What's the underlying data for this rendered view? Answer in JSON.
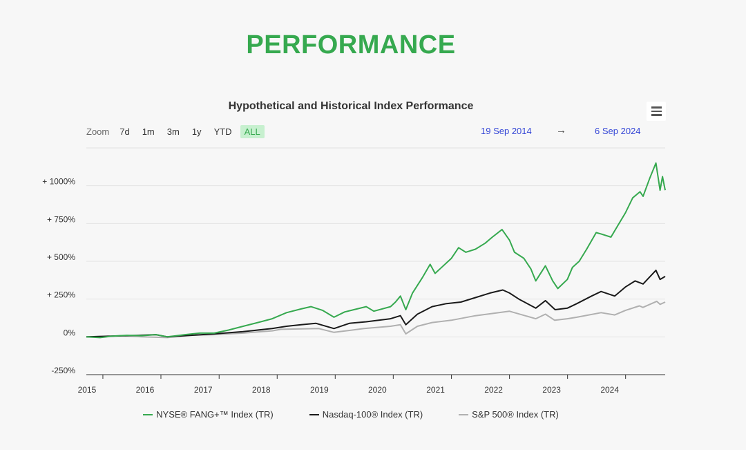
{
  "page": {
    "title": "PERFORMANCE"
  },
  "toolbar": {
    "zoom_label": "Zoom",
    "zoom_buttons": [
      "7d",
      "1m",
      "3m",
      "1y",
      "YTD",
      "ALL"
    ],
    "active_zoom": "ALL",
    "date_from": "19 Sep 2014",
    "arrow": "→",
    "date_to": "6 Sep 2024",
    "menu_icon": "hamburger-menu-icon"
  },
  "chart_data": {
    "type": "line",
    "title": "Hypothetical and Historical Index Performance",
    "xlabel": "",
    "ylabel": "",
    "x_ticks": [
      "2015",
      "2016",
      "2017",
      "2018",
      "2019",
      "2020",
      "2021",
      "2022",
      "2023",
      "2024"
    ],
    "y_ticks": [
      "-250%",
      "0%",
      "+ 250%",
      "+ 500%",
      "+ 750%",
      "+ 1000%"
    ],
    "ylim": [
      -250,
      1250
    ],
    "xlim": [
      "2014-09-19",
      "2024-09-06"
    ],
    "grid": "horizontal",
    "legend_position": "bottom",
    "series": [
      {
        "name": "NYSE® FANG+™ Index (TR)",
        "color": "#36a94f",
        "points": [
          [
            "2014-09-19",
            0
          ],
          [
            "2014-12-15",
            -5
          ],
          [
            "2015-03-01",
            5
          ],
          [
            "2015-06-01",
            10
          ],
          [
            "2015-09-01",
            8
          ],
          [
            "2015-12-01",
            15
          ],
          [
            "2016-02-10",
            0
          ],
          [
            "2016-06-01",
            15
          ],
          [
            "2016-09-01",
            25
          ],
          [
            "2016-12-01",
            25
          ],
          [
            "2017-03-01",
            45
          ],
          [
            "2017-06-01",
            70
          ],
          [
            "2017-09-01",
            95
          ],
          [
            "2017-12-01",
            120
          ],
          [
            "2018-03-01",
            160
          ],
          [
            "2018-06-01",
            185
          ],
          [
            "2018-08-01",
            200
          ],
          [
            "2018-10-15",
            175
          ],
          [
            "2018-12-24",
            130
          ],
          [
            "2019-03-01",
            165
          ],
          [
            "2019-07-15",
            200
          ],
          [
            "2019-09-01",
            170
          ],
          [
            "2019-12-15",
            200
          ],
          [
            "2020-01-15",
            230
          ],
          [
            "2020-02-15",
            270
          ],
          [
            "2020-03-20",
            180
          ],
          [
            "2020-05-01",
            290
          ],
          [
            "2020-07-01",
            390
          ],
          [
            "2020-08-20",
            480
          ],
          [
            "2020-09-20",
            420
          ],
          [
            "2020-11-01",
            460
          ],
          [
            "2021-01-01",
            520
          ],
          [
            "2021-02-15",
            590
          ],
          [
            "2021-04-01",
            560
          ],
          [
            "2021-06-01",
            580
          ],
          [
            "2021-08-01",
            620
          ],
          [
            "2021-09-15",
            660
          ],
          [
            "2021-11-15",
            710
          ],
          [
            "2022-01-01",
            640
          ],
          [
            "2022-02-01",
            560
          ],
          [
            "2022-04-01",
            520
          ],
          [
            "2022-05-15",
            450
          ],
          [
            "2022-06-15",
            370
          ],
          [
            "2022-08-15",
            470
          ],
          [
            "2022-09-30",
            370
          ],
          [
            "2022-11-01",
            320
          ],
          [
            "2022-12-31",
            380
          ],
          [
            "2023-02-01",
            460
          ],
          [
            "2023-03-15",
            500
          ],
          [
            "2023-05-01",
            580
          ],
          [
            "2023-06-30",
            690
          ],
          [
            "2023-08-01",
            680
          ],
          [
            "2023-10-01",
            660
          ],
          [
            "2023-11-15",
            740
          ],
          [
            "2023-12-31",
            820
          ],
          [
            "2024-02-15",
            920
          ],
          [
            "2024-04-01",
            960
          ],
          [
            "2024-04-20",
            930
          ],
          [
            "2024-06-01",
            1050
          ],
          [
            "2024-07-10",
            1150
          ],
          [
            "2024-08-05",
            970
          ],
          [
            "2024-08-20",
            1060
          ],
          [
            "2024-09-06",
            970
          ]
        ]
      },
      {
        "name": "Nasdaq-100® Index (TR)",
        "color": "#1a1a1a",
        "points": [
          [
            "2014-09-19",
            0
          ],
          [
            "2015-03-01",
            5
          ],
          [
            "2015-08-15",
            10
          ],
          [
            "2015-12-01",
            15
          ],
          [
            "2016-02-10",
            0
          ],
          [
            "2016-06-01",
            8
          ],
          [
            "2016-12-01",
            20
          ],
          [
            "2017-06-01",
            35
          ],
          [
            "2017-12-01",
            55
          ],
          [
            "2018-03-01",
            70
          ],
          [
            "2018-06-01",
            80
          ],
          [
            "2018-09-01",
            90
          ],
          [
            "2018-12-24",
            55
          ],
          [
            "2019-04-01",
            90
          ],
          [
            "2019-07-15",
            100
          ],
          [
            "2019-12-15",
            120
          ],
          [
            "2020-02-15",
            140
          ],
          [
            "2020-03-20",
            80
          ],
          [
            "2020-06-01",
            150
          ],
          [
            "2020-09-01",
            200
          ],
          [
            "2020-12-01",
            220
          ],
          [
            "2021-03-01",
            230
          ],
          [
            "2021-06-01",
            260
          ],
          [
            "2021-09-01",
            290
          ],
          [
            "2021-11-20",
            310
          ],
          [
            "2022-01-01",
            290
          ],
          [
            "2022-03-01",
            250
          ],
          [
            "2022-06-15",
            190
          ],
          [
            "2022-08-15",
            240
          ],
          [
            "2022-10-15",
            180
          ],
          [
            "2022-12-31",
            190
          ],
          [
            "2023-03-01",
            220
          ],
          [
            "2023-06-01",
            270
          ],
          [
            "2023-07-31",
            300
          ],
          [
            "2023-10-25",
            270
          ],
          [
            "2023-12-31",
            330
          ],
          [
            "2024-03-01",
            370
          ],
          [
            "2024-04-20",
            350
          ],
          [
            "2024-07-10",
            440
          ],
          [
            "2024-08-05",
            380
          ],
          [
            "2024-09-06",
            400
          ]
        ]
      },
      {
        "name": "S&P 500® Index (TR)",
        "color": "#b0b0b0",
        "points": [
          [
            "2014-09-19",
            0
          ],
          [
            "2015-05-01",
            8
          ],
          [
            "2015-09-01",
            0
          ],
          [
            "2016-02-10",
            -5
          ],
          [
            "2016-07-01",
            10
          ],
          [
            "2016-12-01",
            15
          ],
          [
            "2017-06-01",
            25
          ],
          [
            "2017-12-01",
            40
          ],
          [
            "2018-01-25",
            50
          ],
          [
            "2018-09-20",
            55
          ],
          [
            "2018-12-24",
            30
          ],
          [
            "2019-07-01",
            55
          ],
          [
            "2019-12-15",
            70
          ],
          [
            "2020-02-15",
            80
          ],
          [
            "2020-03-20",
            20
          ],
          [
            "2020-06-01",
            70
          ],
          [
            "2020-09-01",
            95
          ],
          [
            "2020-12-31",
            110
          ],
          [
            "2021-06-01",
            140
          ],
          [
            "2021-12-31",
            170
          ],
          [
            "2022-06-15",
            120
          ],
          [
            "2022-08-15",
            150
          ],
          [
            "2022-10-12",
            110
          ],
          [
            "2022-12-31",
            120
          ],
          [
            "2023-03-01",
            130
          ],
          [
            "2023-07-31",
            160
          ],
          [
            "2023-10-25",
            145
          ],
          [
            "2023-12-31",
            175
          ],
          [
            "2024-03-28",
            205
          ],
          [
            "2024-04-19",
            195
          ],
          [
            "2024-07-15",
            235
          ],
          [
            "2024-08-05",
            215
          ],
          [
            "2024-09-06",
            230
          ]
        ]
      }
    ]
  }
}
